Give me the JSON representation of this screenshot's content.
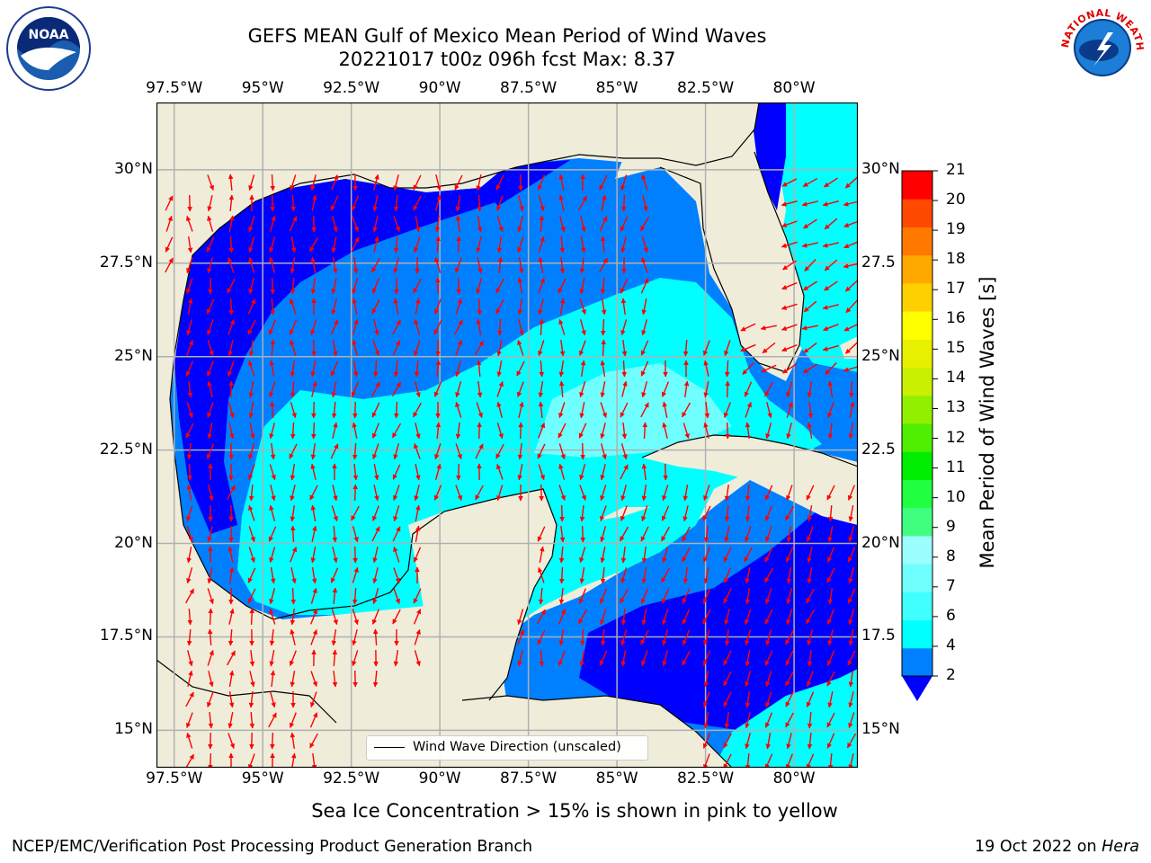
{
  "header": {
    "title_line1": "GEFS MEAN Gulf of Mexico Mean Period of Wind Waves",
    "title_line2": "20221017 t00z 096h fcst   Max: 8.37"
  },
  "axes": {
    "lon_labels": [
      "97.5°W",
      "95°W",
      "92.5°W",
      "90°W",
      "87.5°W",
      "85°W",
      "82.5°W",
      "80°W"
    ],
    "lon_values": [
      -97.5,
      -95,
      -92.5,
      -90,
      -87.5,
      -85,
      -82.5,
      -80
    ],
    "lat_labels_left": [
      "30°N",
      "27.5°N",
      "25°N",
      "22.5°N",
      "20°N",
      "17.5°N",
      "15°N"
    ],
    "lat_labels_right": [
      "30°N",
      "27.5",
      "25°N",
      "22.5",
      "20°N",
      "17.5",
      "15°N"
    ],
    "lat_values": [
      30,
      27.5,
      25,
      22.5,
      20,
      17.5,
      15
    ],
    "lon_range": [
      -98,
      -78.2
    ],
    "lat_range": [
      14.0,
      31.8
    ]
  },
  "colorbar": {
    "label": "Mean Period of Wind Waves [s]",
    "ticks": [
      "2",
      "4",
      "6",
      "7",
      "8",
      "9",
      "10",
      "11",
      "12",
      "13",
      "14",
      "15",
      "16",
      "17",
      "18",
      "19",
      "20",
      "21"
    ],
    "colors": [
      "#0080ff",
      "#00ffff",
      "#40ffff",
      "#70ffff",
      "#9cffff",
      "#40ff80",
      "#20ff40",
      "#00ee00",
      "#50ee00",
      "#90f000",
      "#c8f000",
      "#e8f000",
      "#ffff00",
      "#ffd000",
      "#ffa800",
      "#ff7800",
      "#ff4800",
      "#ff0000"
    ],
    "under_color": "#0000ff"
  },
  "legend": {
    "label": "Wind Wave Direction (unscaled)"
  },
  "map": {
    "land_color": "#efedda",
    "arrow_color": "#ff0000"
  },
  "footer": {
    "note": "Sea Ice Concentration > 15% is shown in pink to yellow",
    "left": "NCEP/EMC/Verification Post Processing Product Generation Branch",
    "right_date": "19 Oct 2022 on ",
    "right_machine": "Hera"
  },
  "logos": {
    "noaa_text": "NOAA",
    "nws_text": "NATIONAL WEATHER SERVICE"
  }
}
